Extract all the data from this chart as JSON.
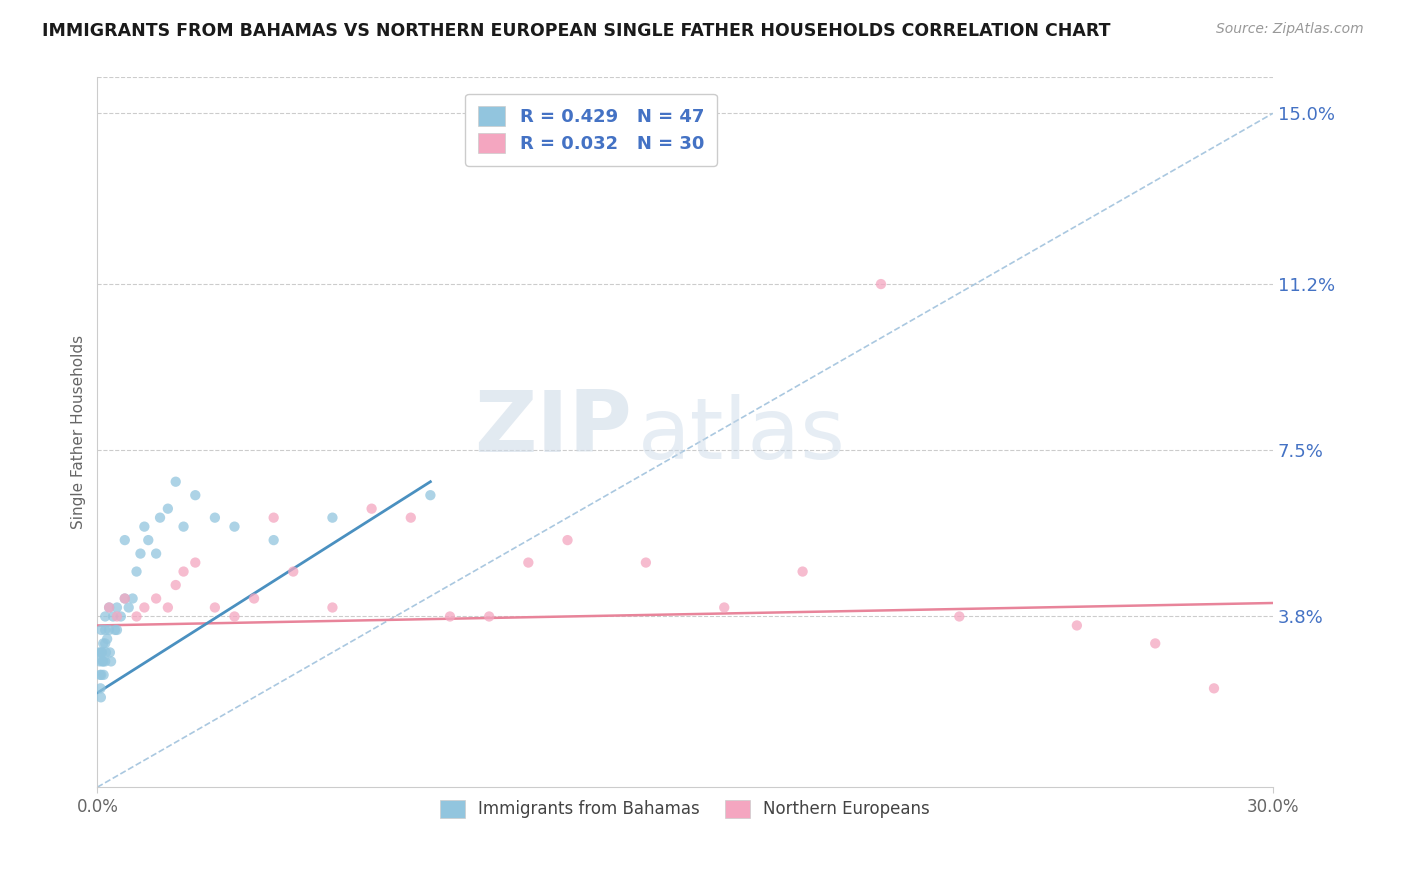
{
  "title": "IMMIGRANTS FROM BAHAMAS VS NORTHERN EUROPEAN SINGLE FATHER HOUSEHOLDS CORRELATION CHART",
  "source": "Source: ZipAtlas.com",
  "ylabel": "Single Father Households",
  "xlim": [
    0.0,
    0.3
  ],
  "ylim": [
    0.0,
    0.158
  ],
  "yticks": [
    0.038,
    0.075,
    0.112,
    0.15
  ],
  "ytick_labels": [
    "3.8%",
    "7.5%",
    "11.2%",
    "15.0%"
  ],
  "xticks": [
    0.0,
    0.3
  ],
  "xtick_labels": [
    "0.0%",
    "30.0%"
  ],
  "legend1_label": "R = 0.429   N = 47",
  "legend2_label": "R = 0.032   N = 30",
  "legend1_color": "#92c5de",
  "legend2_color": "#f4a6c0",
  "watermark_zip": "ZIP",
  "watermark_atlas": "atlas",
  "blue_scatter_x": [
    0.0005,
    0.0006,
    0.0007,
    0.0008,
    0.0009,
    0.001,
    0.001,
    0.001,
    0.0012,
    0.0013,
    0.0015,
    0.0015,
    0.0016,
    0.002,
    0.002,
    0.002,
    0.002,
    0.0022,
    0.0025,
    0.003,
    0.003,
    0.0032,
    0.0035,
    0.004,
    0.0045,
    0.005,
    0.005,
    0.006,
    0.007,
    0.007,
    0.008,
    0.009,
    0.01,
    0.011,
    0.012,
    0.013,
    0.015,
    0.016,
    0.018,
    0.02,
    0.022,
    0.025,
    0.03,
    0.035,
    0.045,
    0.06,
    0.085
  ],
  "blue_scatter_y": [
    0.03,
    0.028,
    0.025,
    0.022,
    0.02,
    0.035,
    0.03,
    0.025,
    0.03,
    0.028,
    0.032,
    0.028,
    0.025,
    0.038,
    0.035,
    0.032,
    0.028,
    0.03,
    0.033,
    0.04,
    0.035,
    0.03,
    0.028,
    0.038,
    0.035,
    0.04,
    0.035,
    0.038,
    0.055,
    0.042,
    0.04,
    0.042,
    0.048,
    0.052,
    0.058,
    0.055,
    0.052,
    0.06,
    0.062,
    0.068,
    0.058,
    0.065,
    0.06,
    0.058,
    0.055,
    0.06,
    0.065
  ],
  "pink_scatter_x": [
    0.003,
    0.005,
    0.007,
    0.01,
    0.012,
    0.015,
    0.018,
    0.02,
    0.022,
    0.025,
    0.03,
    0.035,
    0.04,
    0.045,
    0.05,
    0.06,
    0.07,
    0.08,
    0.09,
    0.1,
    0.11,
    0.12,
    0.14,
    0.16,
    0.18,
    0.2,
    0.22,
    0.25,
    0.27,
    0.285
  ],
  "pink_scatter_y": [
    0.04,
    0.038,
    0.042,
    0.038,
    0.04,
    0.042,
    0.04,
    0.045,
    0.048,
    0.05,
    0.04,
    0.038,
    0.042,
    0.06,
    0.048,
    0.04,
    0.062,
    0.06,
    0.038,
    0.038,
    0.05,
    0.055,
    0.05,
    0.04,
    0.048,
    0.112,
    0.038,
    0.036,
    0.032,
    0.022
  ],
  "blue_line_x": [
    0.0,
    0.085
  ],
  "blue_line_y": [
    0.021,
    0.068
  ],
  "pink_line_x": [
    0.0,
    0.3
  ],
  "pink_line_y": [
    0.036,
    0.041
  ],
  "dashed_line_x": [
    0.0,
    0.3
  ],
  "dashed_line_y": [
    0.0,
    0.15
  ]
}
